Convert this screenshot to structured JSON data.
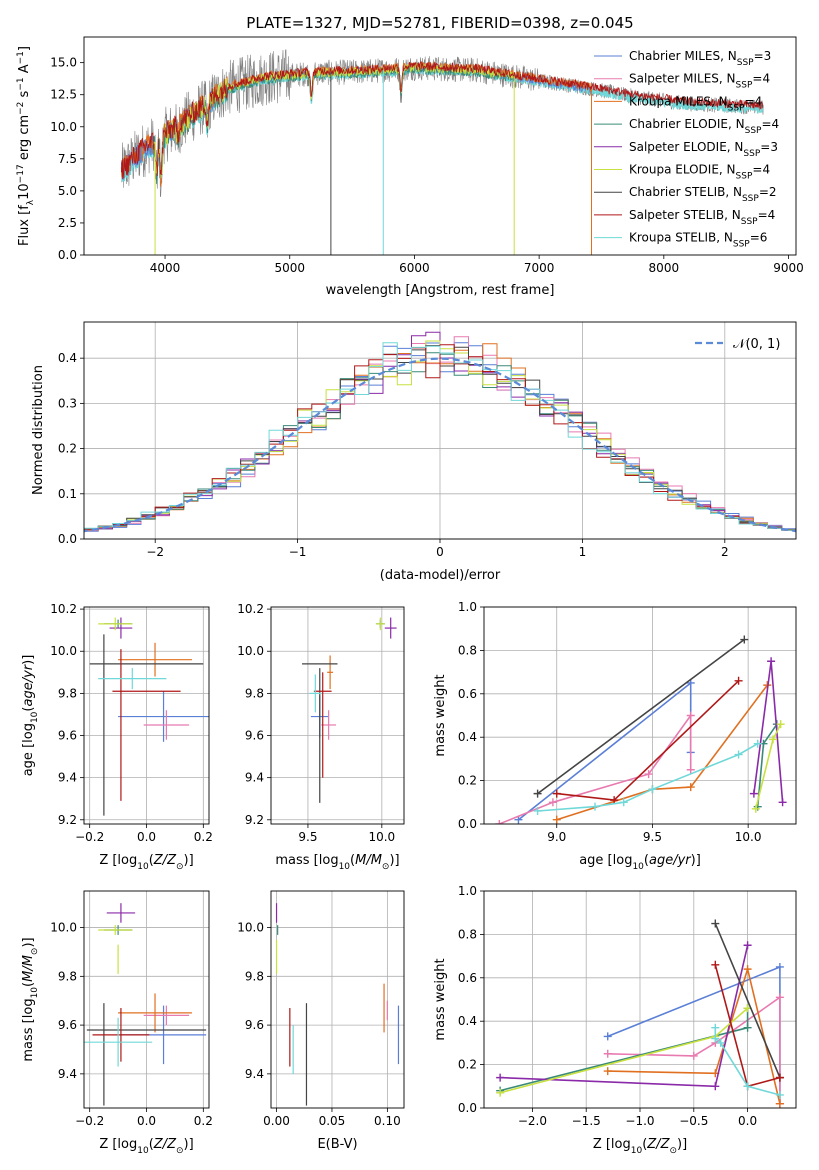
{
  "colors": {
    "chabrier_miles": "#5a7fd6",
    "salpeter_miles": "#e87ab0",
    "kroupa_miles": "#e07020",
    "chabrier_elodie": "#3a8a78",
    "salpeter_elodie": "#8a2aa8",
    "kroupa_elodie": "#c8e040",
    "chabrier_stelib": "#444444",
    "salpeter_stelib": "#b01818",
    "kroupa_stelib": "#70d8d8",
    "data": "#808080",
    "normal": "#5a8ad8",
    "grid": "#b0b0b0"
  },
  "chart_data": [
    {
      "id": "spectrum",
      "type": "line",
      "title": "PLATE=1327, MJD=52781, FIBERID=0398, z=0.045",
      "xlabel": "wavelength [Angstrom, rest frame]",
      "ylabel": "Flux [f_λ 10^-17 erg cm^-2 s^-1 A^-1]",
      "xlim": [
        3350,
        9060
      ],
      "ylim": [
        0,
        17
      ],
      "xticks": [
        "4000",
        "5000",
        "6000",
        "7000",
        "8000",
        "9000"
      ],
      "yticks": [
        "0.0",
        "2.5",
        "5.0",
        "7.5",
        "10.0",
        "12.5",
        "15.0"
      ],
      "grid": false,
      "legend_position": "top-right",
      "legend": [
        {
          "text": "Chabrier MILES, N",
          "sub": "SSP",
          "tail": "=3",
          "color": "chabrier_miles"
        },
        {
          "text": "Salpeter MILES, N",
          "sub": "SSP",
          "tail": "=4",
          "color": "salpeter_miles"
        },
        {
          "text": "Kroupa MILES, N",
          "sub": "SSP",
          "tail": "=4",
          "color": "kroupa_miles"
        },
        {
          "text": "Chabrier ELODIE, N",
          "sub": "SSP",
          "tail": "=4",
          "color": "chabrier_elodie"
        },
        {
          "text": "Salpeter ELODIE, N",
          "sub": "SSP",
          "tail": "=3",
          "color": "salpeter_elodie"
        },
        {
          "text": "Kroupa ELODIE, N",
          "sub": "SSP",
          "tail": "=4",
          "color": "kroupa_elodie"
        },
        {
          "text": "Chabrier STELIB, N",
          "sub": "SSP",
          "tail": "=2",
          "color": "chabrier_stelib"
        },
        {
          "text": "Salpeter STELIB, N",
          "sub": "SSP",
          "tail": "=4",
          "color": "salpeter_stelib"
        },
        {
          "text": "Kroupa STELIB, N",
          "sub": "SSP",
          "tail": "=6",
          "color": "kroupa_stelib"
        }
      ],
      "continuum_points": [
        [
          3650,
          6.5
        ],
        [
          3800,
          8.0
        ],
        [
          3950,
          9.0
        ],
        [
          4100,
          10.0
        ],
        [
          4300,
          11.5
        ],
        [
          4500,
          13.0
        ],
        [
          4800,
          13.8
        ],
        [
          5200,
          14.2
        ],
        [
          5600,
          14.3
        ],
        [
          6000,
          14.6
        ],
        [
          6500,
          14.4
        ],
        [
          7000,
          13.6
        ],
        [
          7400,
          13.0
        ],
        [
          7800,
          12.3
        ],
        [
          8200,
          11.8
        ],
        [
          8600,
          11.6
        ],
        [
          8800,
          11.5
        ]
      ],
      "absorption_features": [
        [
          3933,
          6.0
        ],
        [
          3968,
          5.5
        ],
        [
          4102,
          9.0
        ],
        [
          4340,
          10.0
        ],
        [
          5175,
          12.0
        ],
        [
          5893,
          12.5
        ]
      ],
      "model_dropouts": [
        {
          "x": 3920,
          "series": "kroupa_elodie"
        },
        {
          "x": 5330,
          "series": "chabrier_stelib"
        },
        {
          "x": 5750,
          "series": "kroupa_stelib"
        },
        {
          "x": 6800,
          "series": "kroupa_elodie"
        },
        {
          "x": 7420,
          "series": "kroupa_miles"
        }
      ],
      "model_ranges": {
        "miles": [
          3650,
          7420
        ],
        "elodie": [
          3900,
          6800
        ],
        "stelib": [
          3650,
          8800
        ]
      }
    },
    {
      "id": "residual_histogram",
      "type": "line",
      "xlabel": "(data-model)/error",
      "ylabel": "Normed distribution",
      "xlim": [
        -2.5,
        2.5
      ],
      "ylim": [
        0,
        0.48
      ],
      "xticks": [
        "−2",
        "−1",
        "0",
        "1",
        "2"
      ],
      "yticks": [
        "0.0",
        "0.1",
        "0.2",
        "0.3",
        "0.4"
      ],
      "grid": true,
      "bin_width": 0.1,
      "reference_series": {
        "name": "𝒩(0, 1)",
        "mean": 0,
        "sigma": 1
      },
      "legend_position": "top-right",
      "series_colors": [
        "chabrier_miles",
        "salpeter_miles",
        "kroupa_miles",
        "chabrier_elodie",
        "salpeter_elodie",
        "kroupa_elodie",
        "chabrier_stelib",
        "salpeter_stelib",
        "kroupa_stelib"
      ]
    },
    {
      "id": "z_vs_age",
      "type": "scatter",
      "xlabel": "Z [log10(Z/Z⊙)]",
      "ylabel": "age  [log10(age/yr)]",
      "xlim": [
        -0.22,
        0.22
      ],
      "ylim": [
        9.18,
        10.21
      ],
      "xticks": [
        "−0.2",
        "0.0",
        "0.2"
      ],
      "yticks": [
        "9.2",
        "9.4",
        "9.6",
        "9.8",
        "10.0",
        "10.2"
      ],
      "grid": true,
      "points": [
        {
          "series": "chabrier_miles",
          "x": 0.06,
          "y": 9.69,
          "xerr": 0.16,
          "yerr": 0.12
        },
        {
          "series": "salpeter_miles",
          "x": 0.07,
          "y": 9.65,
          "xerr": 0.08,
          "yerr": 0.07
        },
        {
          "series": "kroupa_miles",
          "x": 0.03,
          "y": 9.96,
          "xerr": 0.13,
          "yerr": 0.08
        },
        {
          "series": "chabrier_elodie",
          "x": -0.1,
          "y": 10.13,
          "xerr": 0.05,
          "yerr": 0.02
        },
        {
          "series": "salpeter_elodie",
          "x": -0.09,
          "y": 10.11,
          "xerr": 0.04,
          "yerr": 0.05
        },
        {
          "series": "kroupa_elodie",
          "x": -0.11,
          "y": 10.13,
          "xerr": 0.06,
          "yerr": 0.03
        },
        {
          "series": "chabrier_stelib",
          "x": 0.0,
          "y": 9.94,
          "xerr": 0.2,
          "yerr": 0.0
        },
        {
          "series": "chabrier_stelib",
          "x": -0.15,
          "y": 9.65,
          "xerr": 0.0,
          "yerr": 0.43
        },
        {
          "series": "salpeter_stelib",
          "x": 0.0,
          "y": 9.81,
          "xerr": 0.12,
          "yerr": 0.0
        },
        {
          "series": "salpeter_stelib",
          "x": -0.09,
          "y": 9.65,
          "xerr": 0.0,
          "yerr": 0.36
        },
        {
          "series": "kroupa_stelib",
          "x": -0.05,
          "y": 9.87,
          "xerr": 0.12,
          "yerr": 0.05
        }
      ]
    },
    {
      "id": "mass_vs_age",
      "type": "scatter",
      "xlabel": "mass [log10(M/M⊙)]",
      "ylabel": "",
      "xlim": [
        9.25,
        10.15
      ],
      "ylim": [
        9.18,
        10.21
      ],
      "xticks": [
        "9.5",
        "10.0"
      ],
      "yticks": [
        "9.2",
        "9.4",
        "9.6",
        "9.8",
        "10.0",
        "10.2"
      ],
      "grid": true,
      "points": [
        {
          "series": "chabrier_miles",
          "x": 9.58,
          "y": 9.69,
          "xerr": 0.06,
          "yerr": 0.1
        },
        {
          "series": "salpeter_miles",
          "x": 9.64,
          "y": 9.65,
          "xerr": 0.05,
          "yerr": 0.07
        },
        {
          "series": "kroupa_miles",
          "x": 9.65,
          "y": 9.9,
          "xerr": 0.02,
          "yerr": 0.08
        },
        {
          "series": "chabrier_elodie",
          "x": 9.99,
          "y": 10.13,
          "xerr": 0.03,
          "yerr": 0.02
        },
        {
          "series": "salpeter_elodie",
          "x": 10.06,
          "y": 10.11,
          "xerr": 0.04,
          "yerr": 0.05
        },
        {
          "series": "kroupa_elodie",
          "x": 9.99,
          "y": 10.13,
          "xerr": 0.03,
          "yerr": 0.03
        },
        {
          "series": "chabrier_stelib",
          "x": 9.58,
          "y": 9.94,
          "xerr": 0.12,
          "yerr": 0.0
        },
        {
          "series": "chabrier_stelib",
          "x": 9.58,
          "y": 9.6,
          "xerr": 0.0,
          "yerr": 0.32
        },
        {
          "series": "salpeter_stelib",
          "x": 9.6,
          "y": 9.81,
          "xerr": 0.06,
          "yerr": 0.0
        },
        {
          "series": "salpeter_stelib",
          "x": 9.6,
          "y": 9.65,
          "xerr": 0.0,
          "yerr": 0.25
        },
        {
          "series": "kroupa_stelib",
          "x": 9.55,
          "y": 9.8,
          "xerr": 0.04,
          "yerr": 0.09
        }
      ]
    },
    {
      "id": "age_mass_weight",
      "type": "line",
      "xlabel": "age  [log10(age/yr)]",
      "ylabel": "mass weight",
      "xlim": [
        8.62,
        10.25
      ],
      "ylim": [
        0,
        1
      ],
      "xticks": [
        "9.0",
        "9.5",
        "10.0"
      ],
      "yticks": [
        "0.0",
        "0.2",
        "0.4",
        "0.6",
        "0.8",
        "1.0"
      ],
      "grid": true,
      "series": [
        {
          "color": "chabrier_miles",
          "x": [
            8.8,
            9.7,
            9.7
          ],
          "y": [
            0.02,
            0.65,
            0.33
          ]
        },
        {
          "color": "salpeter_miles",
          "x": [
            8.7,
            8.98,
            9.48,
            9.7,
            9.7
          ],
          "y": [
            0.0,
            0.1,
            0.23,
            0.5,
            0.25
          ]
        },
        {
          "color": "kroupa_miles",
          "x": [
            9.0,
            9.5,
            9.7,
            10.1
          ],
          "y": [
            0.02,
            0.16,
            0.17,
            0.64
          ]
        },
        {
          "color": "chabrier_elodie",
          "x": [
            10.05,
            10.08,
            10.15
          ],
          "y": [
            0.08,
            0.37,
            0.46
          ]
        },
        {
          "color": "salpeter_elodie",
          "x": [
            10.03,
            10.12,
            10.18
          ],
          "y": [
            0.14,
            0.75,
            0.1
          ]
        },
        {
          "color": "kroupa_elodie",
          "x": [
            10.04,
            10.13,
            10.17
          ],
          "y": [
            0.07,
            0.39,
            0.46
          ]
        },
        {
          "color": "chabrier_stelib",
          "x": [
            8.9,
            9.98
          ],
          "y": [
            0.14,
            0.85
          ]
        },
        {
          "color": "salpeter_stelib",
          "x": [
            9.0,
            9.3,
            9.95
          ],
          "y": [
            0.14,
            0.11,
            0.66
          ]
        },
        {
          "color": "kroupa_stelib",
          "x": [
            8.9,
            9.2,
            9.35,
            9.5,
            9.95,
            10.05
          ],
          "y": [
            0.06,
            0.08,
            0.1,
            0.16,
            0.32,
            0.37
          ]
        }
      ]
    },
    {
      "id": "z_vs_mass",
      "type": "scatter",
      "xlabel": "Z [log10(Z/Z⊙)]",
      "ylabel": "mass [log10(M/M⊙)]",
      "xlim": [
        -0.22,
        0.22
      ],
      "ylim": [
        9.26,
        10.15
      ],
      "xticks": [
        "−0.2",
        "0.0",
        "0.2"
      ],
      "yticks": [
        "9.4",
        "9.6",
        "9.8",
        "10.0"
      ],
      "grid": true,
      "points": [
        {
          "series": "chabrier_miles",
          "x": 0.06,
          "y": 9.56,
          "xerr": 0.15,
          "yerr": 0.12
        },
        {
          "series": "salpeter_miles",
          "x": 0.07,
          "y": 9.64,
          "xerr": 0.08,
          "yerr": 0.04
        },
        {
          "series": "kroupa_miles",
          "x": 0.03,
          "y": 9.65,
          "xerr": 0.13,
          "yerr": 0.08
        },
        {
          "series": "chabrier_elodie",
          "x": -0.1,
          "y": 9.99,
          "xerr": 0.05,
          "yerr": 0.02
        },
        {
          "series": "salpeter_elodie",
          "x": -0.09,
          "y": 10.06,
          "xerr": 0.05,
          "yerr": 0.04
        },
        {
          "series": "kroupa_elodie",
          "x": -0.11,
          "y": 9.99,
          "xerr": 0.06,
          "yerr": 0.02
        },
        {
          "series": "kroupa_elodie",
          "x": -0.1,
          "y": 9.87,
          "xerr": 0.0,
          "yerr": 0.06
        },
        {
          "series": "chabrier_stelib",
          "x": 0.0,
          "y": 9.58,
          "xerr": 0.21,
          "yerr": 0.0
        },
        {
          "series": "chabrier_stelib",
          "x": -0.15,
          "y": 9.48,
          "xerr": 0.0,
          "yerr": 0.21
        },
        {
          "series": "salpeter_stelib",
          "x": -0.09,
          "y": 9.56,
          "xerr": 0.1,
          "yerr": 0.11
        },
        {
          "series": "kroupa_stelib",
          "x": -0.1,
          "y": 9.53,
          "xerr": 0.12,
          "yerr": 0.1
        }
      ]
    },
    {
      "id": "ebv_vs_mass",
      "type": "scatter",
      "xlabel": "E(B-V)",
      "ylabel": "",
      "xlim": [
        -0.005,
        0.115
      ],
      "ylim": [
        9.26,
        10.15
      ],
      "xticks": [
        "0.00",
        "0.05",
        "0.10"
      ],
      "yticks": [
        "9.4",
        "9.6",
        "9.8",
        "10.0"
      ],
      "grid": true,
      "points": [
        {
          "series": "chabrier_miles",
          "x": 0.11,
          "y": 9.56,
          "xerr": 0.0,
          "yerr": 0.12
        },
        {
          "series": "salpeter_miles",
          "x": 0.1,
          "y": 9.66,
          "xerr": 0.0,
          "yerr": 0.04
        },
        {
          "series": "kroupa_miles",
          "x": 0.097,
          "y": 9.67,
          "xerr": 0.0,
          "yerr": 0.1
        },
        {
          "series": "chabrier_elodie",
          "x": 0.001,
          "y": 9.99,
          "xerr": 0.0,
          "yerr": 0.02
        },
        {
          "series": "salpeter_elodie",
          "x": 0.0,
          "y": 10.06,
          "xerr": 0.0,
          "yerr": 0.04
        },
        {
          "series": "kroupa_elodie",
          "x": 0.0,
          "y": 9.88,
          "xerr": 0.0,
          "yerr": 0.07
        },
        {
          "series": "chabrier_stelib",
          "x": 0.027,
          "y": 9.48,
          "xerr": 0.0,
          "yerr": 0.21
        },
        {
          "series": "salpeter_stelib",
          "x": 0.012,
          "y": 9.55,
          "xerr": 0.0,
          "yerr": 0.12
        },
        {
          "series": "kroupa_stelib",
          "x": 0.015,
          "y": 9.5,
          "xerr": 0.0,
          "yerr": 0.1
        }
      ]
    },
    {
      "id": "z_mass_weight",
      "type": "line",
      "xlabel": "Z [log10(Z/Z⊙)]",
      "ylabel": "mass weight",
      "xlim": [
        -2.45,
        0.45
      ],
      "ylim": [
        0,
        1
      ],
      "xticks": [
        "−2.0",
        "−1.5",
        "−1.0",
        "−0.5",
        "0.0"
      ],
      "yticks": [
        "0.0",
        "0.2",
        "0.4",
        "0.6",
        "0.8",
        "1.0"
      ],
      "grid": true,
      "series": [
        {
          "color": "chabrier_miles",
          "x": [
            -1.3,
            0.3,
            0.3
          ],
          "y": [
            0.33,
            0.65,
            0.02
          ]
        },
        {
          "color": "salpeter_miles",
          "x": [
            -1.3,
            -0.5,
            -0.3,
            0.3,
            0.3
          ],
          "y": [
            0.25,
            0.24,
            0.3,
            0.51,
            0.02
          ]
        },
        {
          "color": "kroupa_miles",
          "x": [
            -1.3,
            -0.3,
            0.0,
            0.3
          ],
          "y": [
            0.17,
            0.16,
            0.64,
            0.02
          ]
        },
        {
          "color": "chabrier_elodie",
          "x": [
            -2.3,
            0.0,
            0.0
          ],
          "y": [
            0.08,
            0.37,
            0.46
          ]
        },
        {
          "color": "salpeter_elodie",
          "x": [
            -2.3,
            -0.3,
            0.0
          ],
          "y": [
            0.14,
            0.1,
            0.75
          ]
        },
        {
          "color": "kroupa_elodie",
          "x": [
            -2.3,
            -0.3,
            0.0
          ],
          "y": [
            0.07,
            0.33,
            0.46
          ]
        },
        {
          "color": "chabrier_stelib",
          "x": [
            -0.3,
            0.3
          ],
          "y": [
            0.85,
            0.14
          ]
        },
        {
          "color": "salpeter_stelib",
          "x": [
            -0.3,
            0.0,
            0.3
          ],
          "y": [
            0.66,
            0.1,
            0.14
          ]
        },
        {
          "color": "kroupa_stelib",
          "x": [
            -0.3,
            -0.3,
            -0.25,
            0.0,
            0.3
          ],
          "y": [
            0.37,
            0.32,
            0.3,
            0.1,
            0.06
          ]
        }
      ]
    }
  ]
}
